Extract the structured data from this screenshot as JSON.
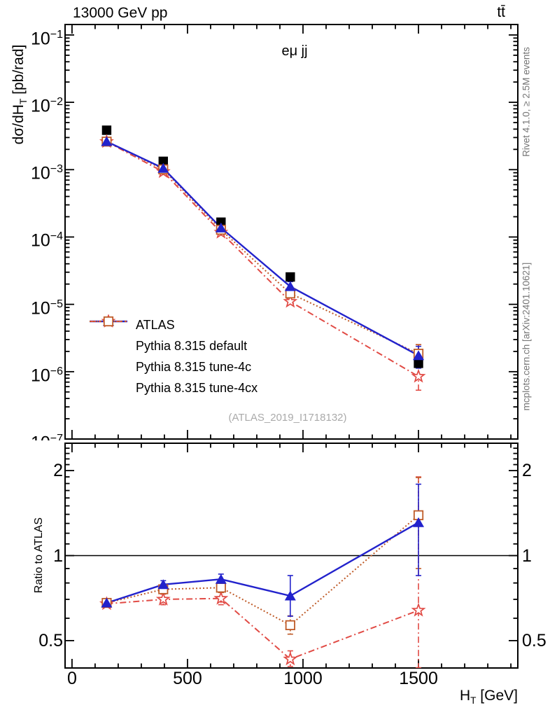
{
  "title": {
    "left": "13000 GeV pp",
    "right": "tt̄"
  },
  "plot": {
    "subtitle": "eμ jj",
    "watermark": "(ATLAS_2019_I1718132)",
    "y_axis_label": {
      "pre": "dσ/dH",
      "sub": "T",
      "post": " [pb/rad]"
    },
    "x_axis_label": {
      "pre": "H",
      "sub": "T",
      "post": " [GeV]"
    },
    "ratio_axis_label": "Ratio to ATLAS"
  },
  "credits": {
    "top_right": "Rivet 4.1.0, ≥ 2.5M events",
    "bottom_right": "mcplots.cern.ch [arXiv:2401.10621]"
  },
  "legend": {
    "items": [
      {
        "label": "ATLAS",
        "marker": "filled-square",
        "color": "#000000",
        "line": "none"
      },
      {
        "label": "Pythia 8.315 default",
        "marker": "filled-triangle",
        "color": "#2222cc",
        "line": "solid"
      },
      {
        "label": "Pythia 8.315 tune-4c",
        "marker": "open-star",
        "color": "#e14b45",
        "line": "dashdot"
      },
      {
        "label": "Pythia 8.315 tune-4cx",
        "marker": "open-square",
        "color": "#bf5b28",
        "line": "dotted"
      }
    ]
  },
  "chart_data": {
    "type": "line",
    "title": "13000 GeV pp, tt̄, eμ jj",
    "xlabel": "H_T [GeV]",
    "ylabel": "dσ/dH_T [pb/rad]",
    "ratio_ylabel": "Ratio to ATLAS",
    "x": [
      150,
      395,
      645,
      945,
      1500
    ],
    "x_axis": {
      "min": -30,
      "max": 1930,
      "major_ticks": [
        0,
        500,
        1000,
        1500
      ],
      "minor_step": 100
    },
    "y_axis": {
      "scale": "log",
      "min": 1e-07,
      "max": 0.143,
      "decade_exponents": [
        -1,
        -2,
        -3,
        -4,
        -5,
        -6,
        -7
      ]
    },
    "ratio_axis": {
      "scale": "log",
      "min": 0.4,
      "max": 2.5,
      "labeled_ticks": [
        2,
        1,
        0.5
      ],
      "reference_line": 1
    },
    "series": [
      {
        "name": "ATLAS",
        "color": "#000000",
        "marker": "filled-square",
        "line": "none",
        "values": [
          0.00385,
          0.00133,
          0.000166,
          2.55e-05,
          1.33e-06
        ]
      },
      {
        "name": "Pythia 8.315 default",
        "color": "#2222cc",
        "marker": "filled-triangle",
        "line": "solid",
        "values": [
          0.00262,
          0.00105,
          0.000137,
          1.84e-05,
          1.74e-06
        ],
        "ratio": [
          0.68,
          0.79,
          0.825,
          0.72,
          1.31
        ],
        "ratio_err_up": [
          0.012,
          0.025,
          0.035,
          0.13,
          0.48
        ],
        "ratio_err_down": [
          0.012,
          0.025,
          0.035,
          0.11,
          0.46
        ]
      },
      {
        "name": "Pythia 8.315 tune-4c",
        "color": "#e14b45",
        "marker": "open-star",
        "line": "dashdot",
        "values": [
          0.0026,
          0.00093,
          0.000117,
          1.1e-05,
          8.5e-07
        ],
        "ratio": [
          0.675,
          0.7,
          0.705,
          0.43,
          0.64
        ],
        "ratio_err_up": [
          0.012,
          0.03,
          0.035,
          0.03,
          1.26
        ],
        "ratio_err_down": [
          0.012,
          0.03,
          0.035,
          0.025,
          0.24
        ]
      },
      {
        "name": "Pythia 8.315 tune-4cx",
        "color": "#bf5b28",
        "marker": "open-square",
        "line": "dotted",
        "values": [
          0.00261,
          0.00101,
          0.000128,
          1.45e-05,
          1.85e-06
        ],
        "ratio": [
          0.68,
          0.76,
          0.77,
          0.567,
          1.39
        ],
        "ratio_err_up": [
          0.012,
          0.02,
          0.03,
          0.045,
          0.5
        ],
        "ratio_err_down": [
          0.012,
          0.02,
          0.03,
          0.04,
          0.49
        ]
      }
    ]
  }
}
